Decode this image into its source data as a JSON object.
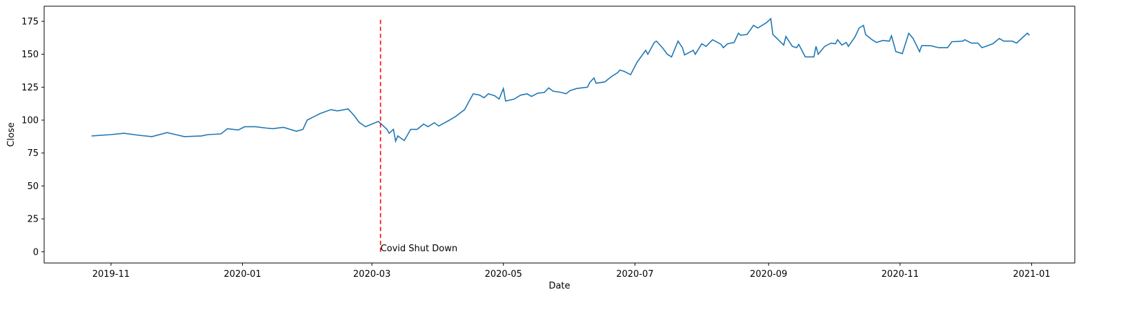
{
  "chart_data": {
    "type": "line",
    "x_label": "Date",
    "y_label": "Close",
    "color": "#1f77b4",
    "x": [
      -9,
      0,
      6,
      13,
      19,
      26,
      30,
      34,
      42,
      45,
      51,
      54,
      59,
      62,
      67,
      72,
      75,
      80,
      86,
      89,
      91,
      94,
      97,
      102,
      105,
      110,
      113,
      115,
      118,
      121,
      124,
      128,
      129,
      131,
      132,
      133,
      136,
      139,
      142,
      145,
      147,
      150,
      152,
      157,
      160,
      164,
      166,
      168,
      171,
      173,
      175,
      178,
      180,
      182,
      183,
      187,
      190,
      193,
      195,
      198,
      201,
      203,
      205,
      209,
      211,
      213,
      216,
      221,
      222,
      224,
      225,
      229,
      232,
      235,
      236,
      238,
      241,
      244,
      248,
      249,
      252,
      253,
      256,
      258,
      260,
      263,
      265,
      266,
      270,
      271,
      274,
      276,
      279,
      283,
      284,
      286,
      289,
      291,
      292,
      295,
      298,
      300,
      304,
      306,
      307,
      312,
      313,
      316,
      318,
      319,
      322,
      326,
      327,
      328,
      331,
      334,
      336,
      337,
      339,
      341,
      342,
      345,
      347,
      349,
      350,
      353,
      355,
      358,
      361,
      362,
      363,
      364,
      367,
      370,
      372,
      375,
      376,
      380,
      384,
      388,
      390,
      395,
      396,
      399,
      402,
      404,
      409,
      412,
      414,
      418,
      420,
      425,
      426
    ],
    "values": [
      88,
      89,
      90,
      88.5,
      87.5,
      90.5,
      89,
      87.5,
      88,
      89,
      89.5,
      93.5,
      92.5,
      95,
      95,
      94,
      93.5,
      94.5,
      91.5,
      93,
      100,
      102.5,
      105,
      108,
      107,
      108.5,
      103,
      98.5,
      95,
      97,
      99,
      93,
      90,
      93,
      84,
      88,
      84.5,
      93,
      93,
      97,
      95,
      98,
      95.5,
      100,
      103,
      108,
      114,
      120,
      119,
      117,
      120,
      118.5,
      116,
      124,
      114.5,
      116,
      119,
      120,
      118,
      120.5,
      121,
      124.5,
      122,
      121,
      120,
      122.5,
      124,
      125,
      128.5,
      132,
      128,
      129,
      133,
      136,
      138,
      137,
      134.5,
      144,
      153,
      150,
      159,
      160,
      154.5,
      150,
      148,
      160,
      155,
      149.5,
      153,
      150,
      158,
      156,
      161,
      157.5,
      155,
      158,
      159,
      166,
      164.5,
      165,
      172,
      170,
      174,
      177,
      165,
      157,
      163.5,
      156,
      155,
      157.5,
      148,
      148,
      156,
      150,
      156,
      158.5,
      158,
      161,
      157,
      159,
      156,
      163,
      170,
      172,
      165,
      161,
      159,
      160.5,
      160,
      164,
      158,
      152,
      150.5,
      166,
      162,
      152,
      156.5,
      156.5,
      155,
      155,
      159.5,
      160,
      161,
      158.5,
      158.5,
      155,
      158,
      162,
      160,
      160,
      158.5,
      166,
      164.5
    ],
    "xlim": [
      -31,
      447
    ],
    "xticks": [
      {
        "value": 0,
        "label": "2019-11"
      },
      {
        "value": 61,
        "label": "2020-01"
      },
      {
        "value": 121,
        "label": "2020-03"
      },
      {
        "value": 182,
        "label": "2020-05"
      },
      {
        "value": 243,
        "label": "2020-07"
      },
      {
        "value": 305,
        "label": "2020-09"
      },
      {
        "value": 366,
        "label": "2020-11"
      },
      {
        "value": 427,
        "label": "2021-01"
      }
    ],
    "ylim": [
      -8.5,
      186.5
    ],
    "yticks": [
      0,
      25,
      50,
      75,
      100,
      125,
      150,
      175
    ],
    "annotation": {
      "text": "Covid Shut Down",
      "x": 125,
      "ymin": 0,
      "ymax": 177.5,
      "color": "#ff0000"
    }
  }
}
